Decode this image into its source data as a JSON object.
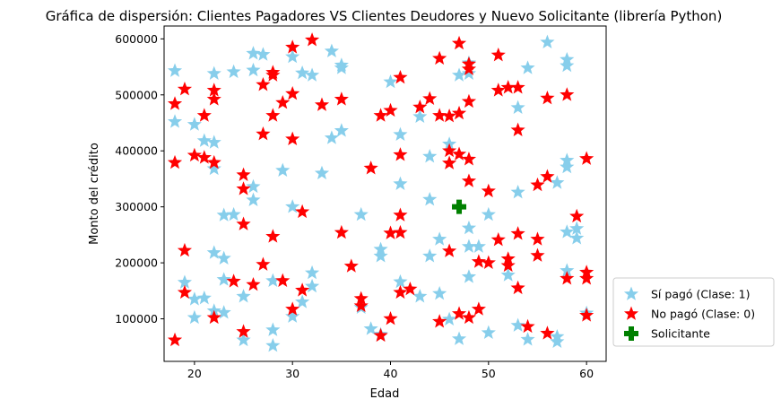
{
  "chart_data": {
    "type": "scatter",
    "title": "Gráfica de dispersión: Clientes Pagadores VS Clientes Deudores y Nuevo Solicitante (librería Python)",
    "xlabel": "Edad",
    "ylabel": "Monto del crédito",
    "xlim": [
      16.9,
      62
    ],
    "ylim": [
      24000,
      623000
    ],
    "xticks": [
      20,
      30,
      40,
      50,
      60
    ],
    "yticks": [
      100000,
      200000,
      300000,
      400000,
      500000,
      600000
    ],
    "xtick_labels": [
      "20",
      "30",
      "40",
      "50",
      "60"
    ],
    "ytick_labels": [
      "100000",
      "200000",
      "300000",
      "400000",
      "500000",
      "600000"
    ],
    "grid": false,
    "legend_position": "outside-bottom-right",
    "series": [
      {
        "name": "Sí pagó (Clase: 1)",
        "color": "#87ceeb",
        "marker": "star",
        "points": [
          [
            18,
            543000
          ],
          [
            18,
            452000
          ],
          [
            19,
            165000
          ],
          [
            20,
            447000
          ],
          [
            20,
            135000
          ],
          [
            20,
            102000
          ],
          [
            21,
            418000
          ],
          [
            21,
            137000
          ],
          [
            22,
            538000
          ],
          [
            22,
            415000
          ],
          [
            22,
            368000
          ],
          [
            22,
            218000
          ],
          [
            22,
            114000
          ],
          [
            23,
            285000
          ],
          [
            23,
            208000
          ],
          [
            23,
            170000
          ],
          [
            23,
            111000
          ],
          [
            24,
            541000
          ],
          [
            24,
            286000
          ],
          [
            25,
            140000
          ],
          [
            25,
            62000
          ],
          [
            26,
            574000
          ],
          [
            26,
            544000
          ],
          [
            26,
            336000
          ],
          [
            26,
            312000
          ],
          [
            27,
            572000
          ],
          [
            28,
            168000
          ],
          [
            28,
            80000
          ],
          [
            28,
            52000
          ],
          [
            29,
            365000
          ],
          [
            30,
            568000
          ],
          [
            30,
            300000
          ],
          [
            30,
            104000
          ],
          [
            31,
            539000
          ],
          [
            31,
            130000
          ],
          [
            32,
            535000
          ],
          [
            32,
            182000
          ],
          [
            32,
            158000
          ],
          [
            33,
            360000
          ],
          [
            34,
            578000
          ],
          [
            34,
            423000
          ],
          [
            35,
            553000
          ],
          [
            35,
            548000
          ],
          [
            35,
            436000
          ],
          [
            37,
            286000
          ],
          [
            37,
            120000
          ],
          [
            38,
            82000
          ],
          [
            39,
            224000
          ],
          [
            39,
            212000
          ],
          [
            39,
            72000
          ],
          [
            40,
            523000
          ],
          [
            41,
            429000
          ],
          [
            41,
            341000
          ],
          [
            41,
            166000
          ],
          [
            43,
            461000
          ],
          [
            43,
            140000
          ],
          [
            44,
            390000
          ],
          [
            44,
            313000
          ],
          [
            44,
            212000
          ],
          [
            45,
            242000
          ],
          [
            45,
            145000
          ],
          [
            46,
            412000
          ],
          [
            46,
            99000
          ],
          [
            47,
            535000
          ],
          [
            47,
            64000
          ],
          [
            48,
            557000
          ],
          [
            48,
            538000
          ],
          [
            48,
            262000
          ],
          [
            48,
            229000
          ],
          [
            48,
            175000
          ],
          [
            49,
            229000
          ],
          [
            50,
            286000
          ],
          [
            50,
            75000
          ],
          [
            52,
            178000
          ],
          [
            53,
            477000
          ],
          [
            53,
            326000
          ],
          [
            53,
            88000
          ],
          [
            54,
            548000
          ],
          [
            54,
            63000
          ],
          [
            56,
            594000
          ],
          [
            57,
            343000
          ],
          [
            57,
            68000
          ],
          [
            57,
            59000
          ],
          [
            58,
            563000
          ],
          [
            58,
            552000
          ],
          [
            58,
            383000
          ],
          [
            58,
            371000
          ],
          [
            58,
            255000
          ],
          [
            58,
            186000
          ],
          [
            59,
            261000
          ],
          [
            59,
            244000
          ],
          [
            60,
            110000
          ]
        ]
      },
      {
        "name": "No pagó (Clase: 0)",
        "color": "#ff0000",
        "marker": "star",
        "points": [
          [
            18,
            484000
          ],
          [
            18,
            379000
          ],
          [
            18,
            62000
          ],
          [
            19,
            510000
          ],
          [
            19,
            222000
          ],
          [
            19,
            147000
          ],
          [
            20,
            392000
          ],
          [
            21,
            463000
          ],
          [
            21,
            388000
          ],
          [
            22,
            508000
          ],
          [
            22,
            492000
          ],
          [
            22,
            379000
          ],
          [
            22,
            102000
          ],
          [
            24,
            167000
          ],
          [
            25,
            357000
          ],
          [
            25,
            332000
          ],
          [
            25,
            269000
          ],
          [
            25,
            77000
          ],
          [
            26,
            161000
          ],
          [
            27,
            518000
          ],
          [
            27,
            430000
          ],
          [
            27,
            197000
          ],
          [
            28,
            540000
          ],
          [
            28,
            535000
          ],
          [
            28,
            463000
          ],
          [
            28,
            247000
          ],
          [
            29,
            486000
          ],
          [
            29,
            168000
          ],
          [
            30,
            585000
          ],
          [
            30,
            502000
          ],
          [
            30,
            421000
          ],
          [
            30,
            117000
          ],
          [
            31,
            291000
          ],
          [
            31,
            151000
          ],
          [
            32,
            598000
          ],
          [
            33,
            482000
          ],
          [
            35,
            492000
          ],
          [
            35,
            254000
          ],
          [
            36,
            194000
          ],
          [
            37,
            136000
          ],
          [
            37,
            123000
          ],
          [
            38,
            369000
          ],
          [
            39,
            463000
          ],
          [
            39,
            70000
          ],
          [
            40,
            472000
          ],
          [
            40,
            253000
          ],
          [
            40,
            100000
          ],
          [
            41,
            531000
          ],
          [
            41,
            393000
          ],
          [
            41,
            285000
          ],
          [
            41,
            254000
          ],
          [
            41,
            147000
          ],
          [
            42,
            153000
          ],
          [
            43,
            478000
          ],
          [
            44,
            493000
          ],
          [
            45,
            565000
          ],
          [
            45,
            463000
          ],
          [
            45,
            95000
          ],
          [
            46,
            400000
          ],
          [
            46,
            378000
          ],
          [
            46,
            221000
          ],
          [
            46,
            462000
          ],
          [
            47,
            592000
          ],
          [
            47,
            467000
          ],
          [
            47,
            394000
          ],
          [
            47,
            109000
          ],
          [
            48,
            555000
          ],
          [
            48,
            546000
          ],
          [
            48,
            488000
          ],
          [
            48,
            385000
          ],
          [
            48,
            346000
          ],
          [
            48,
            102000
          ],
          [
            49,
            202000
          ],
          [
            49,
            117000
          ],
          [
            50,
            328000
          ],
          [
            50,
            200000
          ],
          [
            51,
            571000
          ],
          [
            51,
            508000
          ],
          [
            51,
            241000
          ],
          [
            52,
            513000
          ],
          [
            52,
            207000
          ],
          [
            52,
            195000
          ],
          [
            53,
            513000
          ],
          [
            53,
            437000
          ],
          [
            53,
            252000
          ],
          [
            53,
            155000
          ],
          [
            54,
            86000
          ],
          [
            55,
            339000
          ],
          [
            55,
            242000
          ],
          [
            55,
            213000
          ],
          [
            56,
            494000
          ],
          [
            56,
            354000
          ],
          [
            56,
            74000
          ],
          [
            58,
            500000
          ],
          [
            58,
            172000
          ],
          [
            59,
            283000
          ],
          [
            60,
            386000
          ],
          [
            60,
            183000
          ],
          [
            60,
            172000
          ],
          [
            60,
            106000
          ]
        ]
      },
      {
        "name": "Solicitante",
        "color": "#008000",
        "marker": "plus",
        "points": [
          [
            47,
            300000
          ]
        ]
      }
    ]
  }
}
